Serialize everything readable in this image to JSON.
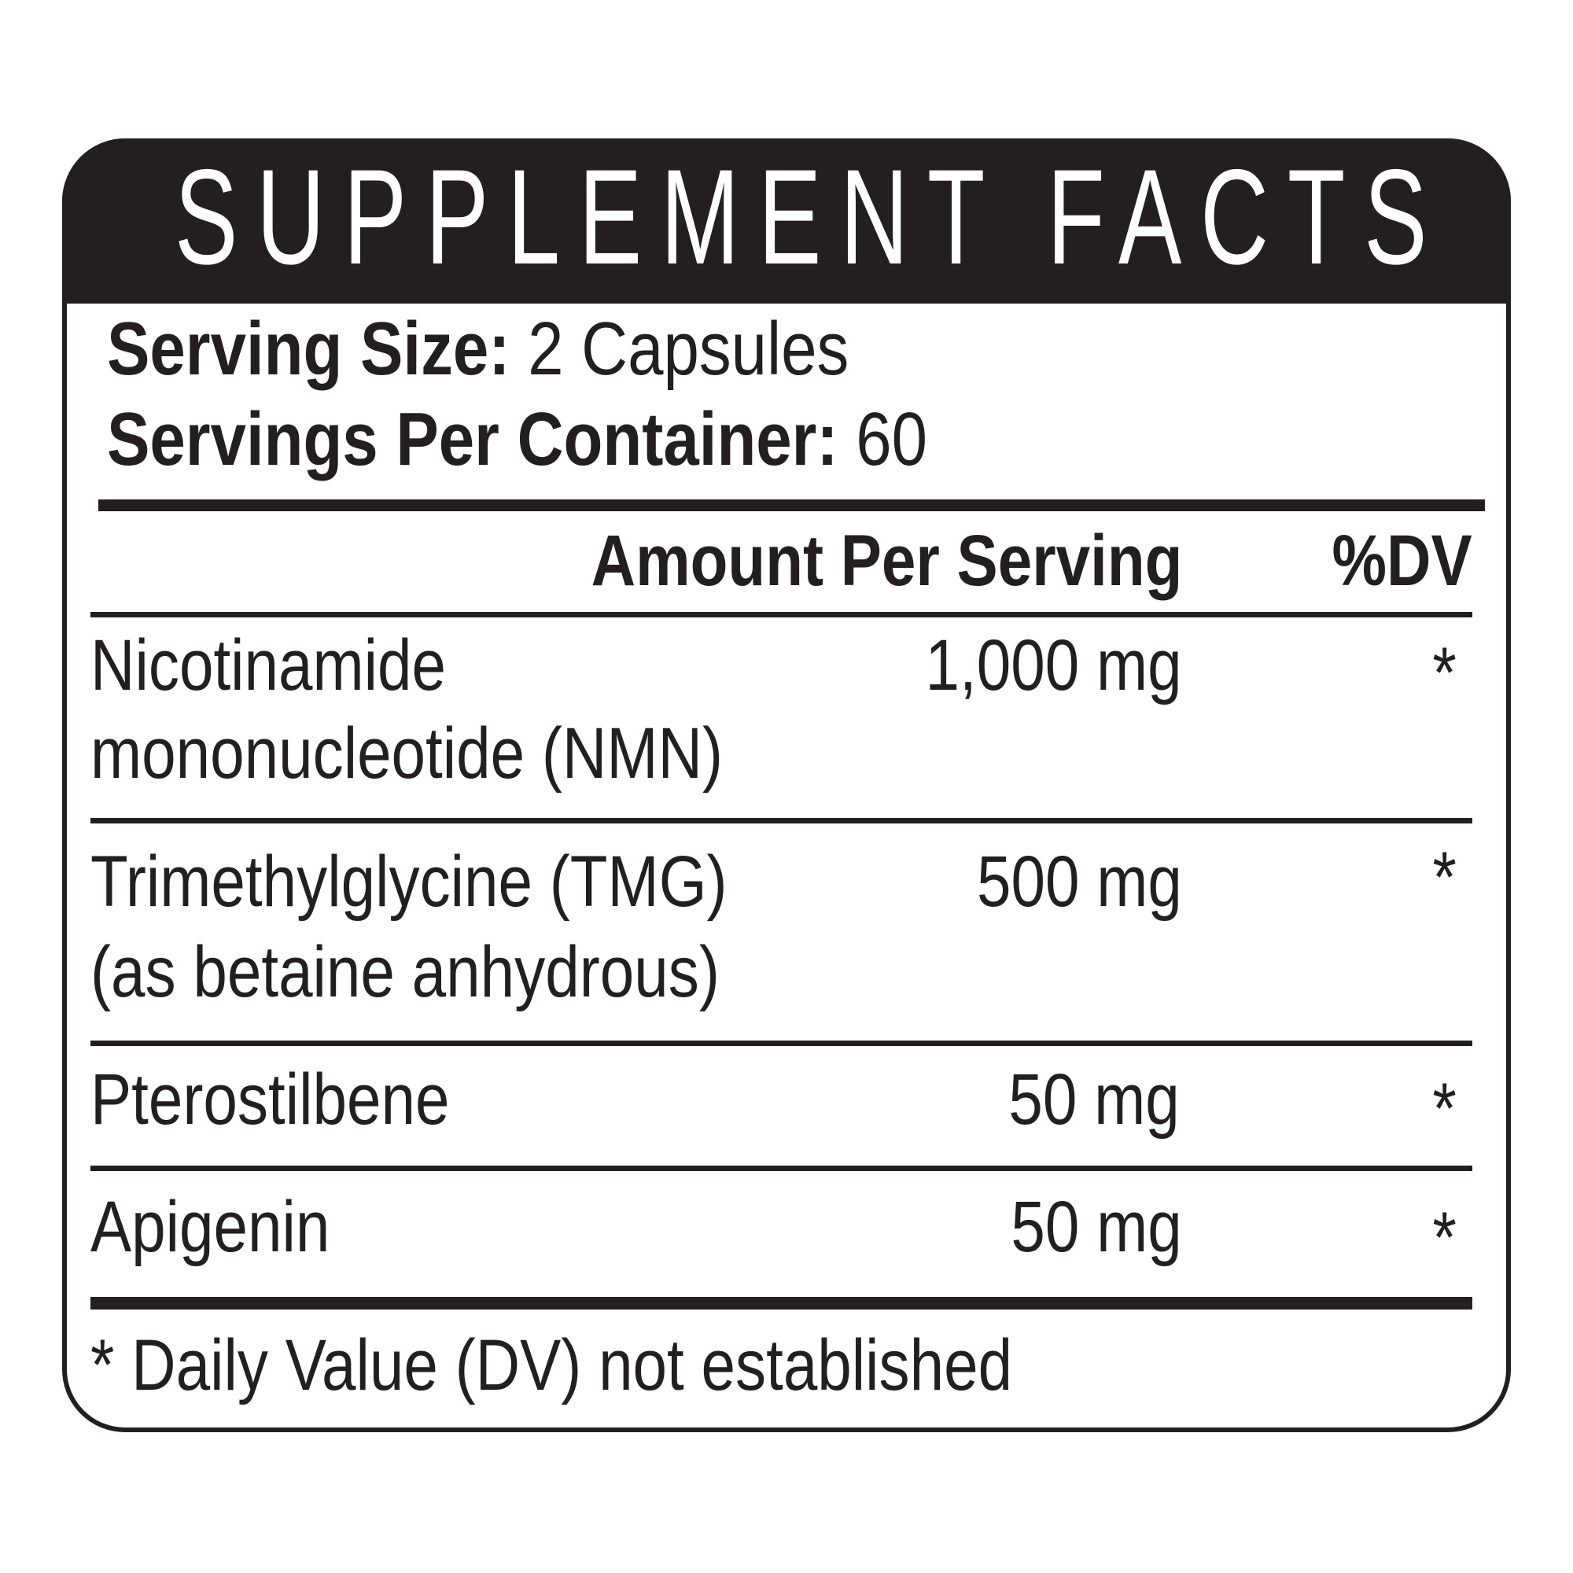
{
  "title": "SUPPLEMENT FACTS",
  "serving": {
    "size_label": "Serving Size:",
    "size_value": " 2 Capsules",
    "per_container_label": "Servings Per Container:",
    "per_container_value": " 60"
  },
  "columns": {
    "amount": "Amount Per Serving",
    "dv": "%DV"
  },
  "rows": [
    {
      "name_line1": "Nicotinamide",
      "name_line2": "mononucleotide (NMN)",
      "amount": "1,000 mg",
      "dv": "*"
    },
    {
      "name_line1": "Trimethylglycine (TMG)",
      "name_line2": "(as betaine anhydrous)",
      "amount": "500 mg",
      "dv": "*"
    },
    {
      "name_line1": "Pterostilbene",
      "amount": "50 mg",
      "dv": "*"
    },
    {
      "name_line1": "Apigenin",
      "amount": "50 mg",
      "dv": "*"
    }
  ],
  "footnote": "* Daily Value (DV) not established",
  "colors": {
    "ink": "#231f20",
    "background": "#ffffff"
  }
}
